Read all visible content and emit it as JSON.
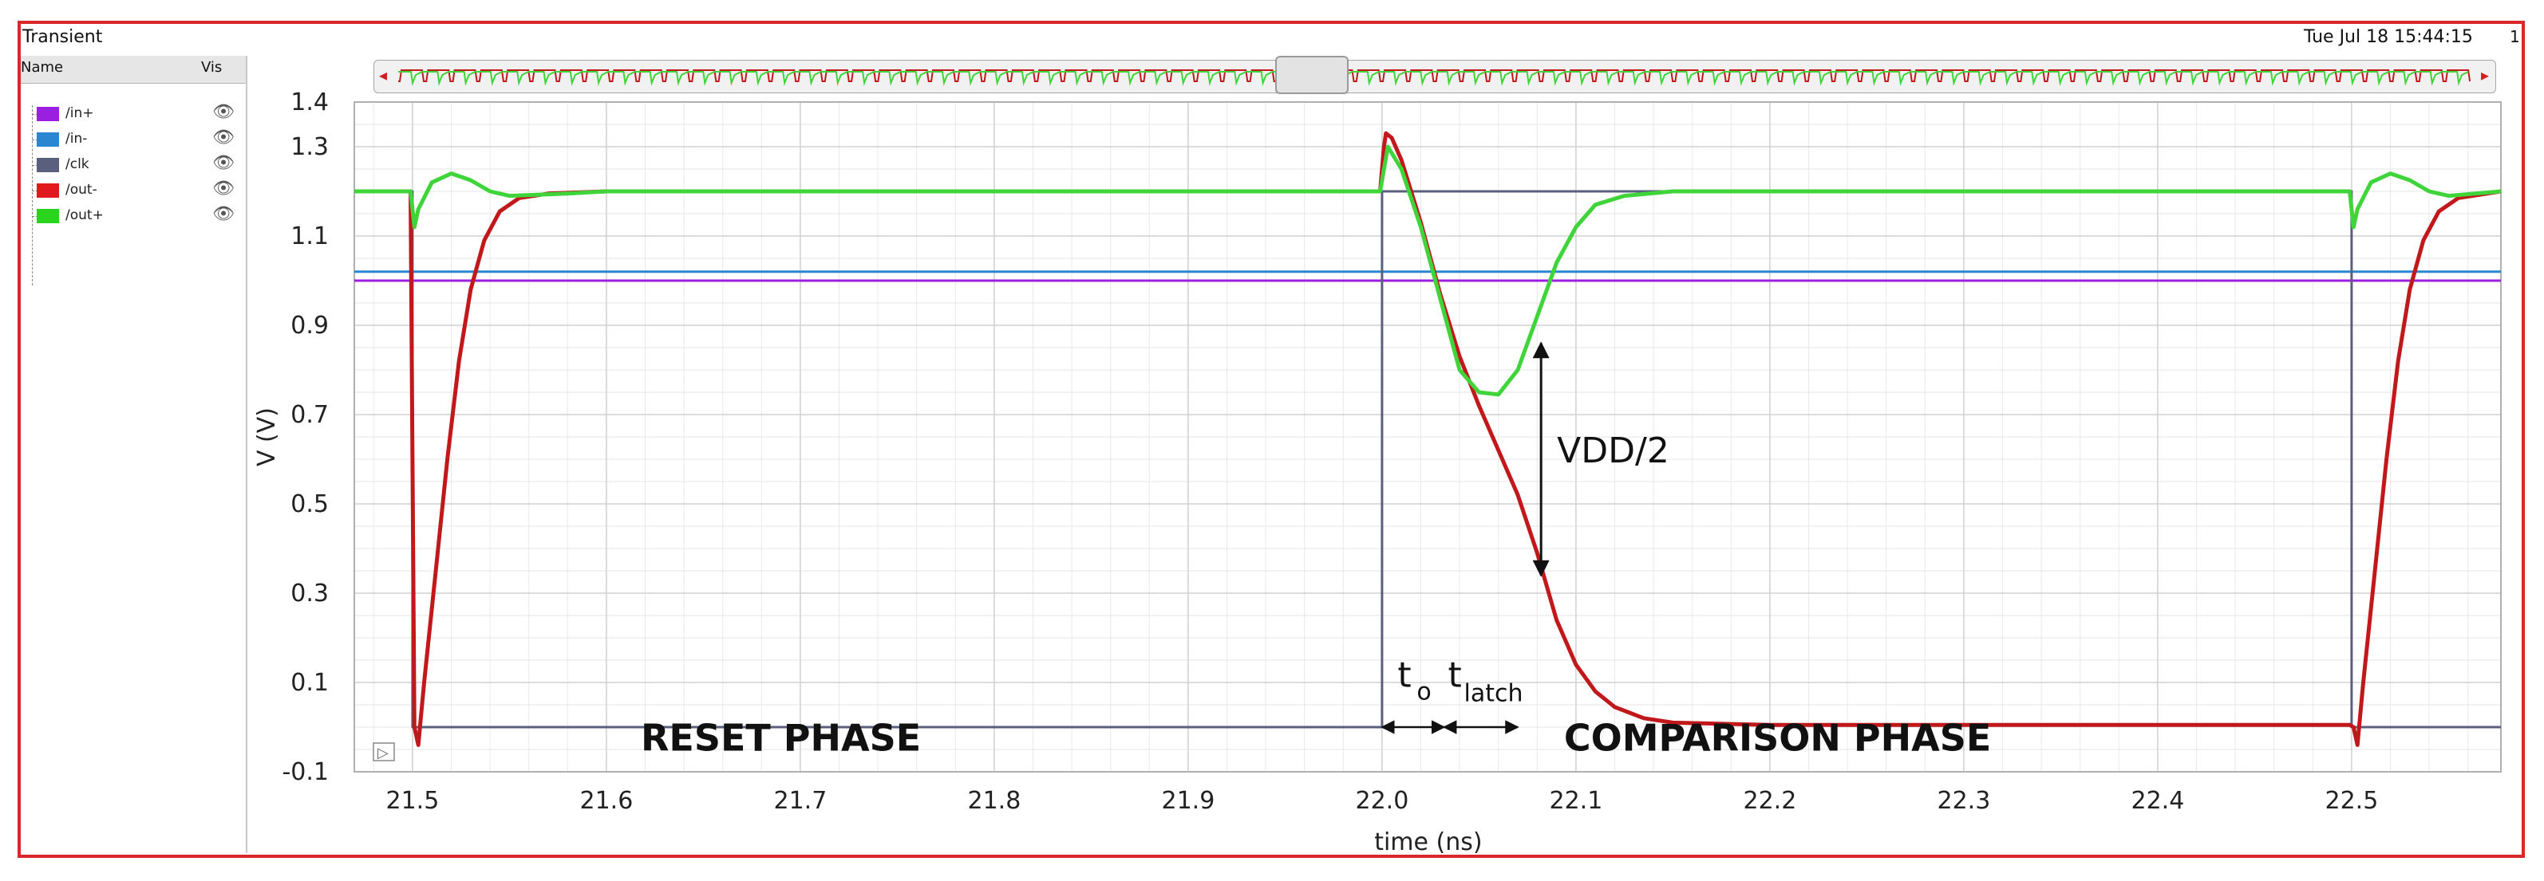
{
  "window": {
    "title": "Transient",
    "date": "Tue Jul 18 15:44:15",
    "number": "1"
  },
  "legend": {
    "header_name": "Name",
    "header_vis": "Vis",
    "items": [
      {
        "label": "/in+",
        "color": "#9b1fe0"
      },
      {
        "label": "/in-",
        "color": "#2a86d0"
      },
      {
        "label": "/clk",
        "color": "#5a5f7d"
      },
      {
        "label": "/out-",
        "color": "#e0191c"
      },
      {
        "label": "/out+",
        "color": "#2ad41c"
      }
    ]
  },
  "navigator": {
    "left_arrow": "◂",
    "right_arrow": "▸",
    "handle": "▌▌"
  },
  "play_icon": "▷",
  "chart_data": {
    "type": "line",
    "xlabel": "time (ns)",
    "ylabel": "V (V)",
    "xlim": [
      21.47,
      22.577
    ],
    "ylim": [
      -0.1,
      1.4
    ],
    "xticks": [
      "21.5",
      "21.6",
      "21.7",
      "21.8",
      "21.9",
      "22.0",
      "22.1",
      "22.2",
      "22.3",
      "22.4",
      "22.5"
    ],
    "xtick_values": [
      21.5,
      21.6,
      21.7,
      21.8,
      21.9,
      22.0,
      22.1,
      22.2,
      22.3,
      22.4,
      22.5
    ],
    "yticks": [
      "1.4",
      "1.3",
      "1.1",
      "0.9",
      "0.7",
      "0.5",
      "0.3",
      "0.1",
      "-0.1"
    ],
    "ytick_values": [
      1.4,
      1.3,
      1.1,
      0.9,
      0.7,
      0.5,
      0.3,
      0.1,
      -0.1
    ],
    "grid": true,
    "series": [
      {
        "name": "/in+",
        "color": "#9b1fe0",
        "points": [
          [
            21.47,
            1.0
          ],
          [
            22.577,
            1.0
          ]
        ]
      },
      {
        "name": "/in-",
        "color": "#2a86d0",
        "points": [
          [
            21.47,
            1.02
          ],
          [
            22.577,
            1.02
          ]
        ]
      },
      {
        "name": "/clk",
        "color": "#5a5f7d",
        "points": [
          [
            21.47,
            1.2
          ],
          [
            21.5,
            1.2
          ],
          [
            21.5,
            0.0
          ],
          [
            22.0,
            0.0
          ],
          [
            22.0,
            1.2
          ],
          [
            22.5,
            1.2
          ],
          [
            22.5,
            0.0
          ],
          [
            22.577,
            0.0
          ]
        ]
      },
      {
        "name": "/out-",
        "color": "#c0181b",
        "points": [
          [
            21.47,
            1.2
          ],
          [
            21.499,
            1.2
          ],
          [
            21.501,
            0.0
          ],
          [
            21.503,
            -0.04
          ],
          [
            21.506,
            0.1
          ],
          [
            21.512,
            0.35
          ],
          [
            21.518,
            0.6
          ],
          [
            21.524,
            0.82
          ],
          [
            21.53,
            0.98
          ],
          [
            21.537,
            1.09
          ],
          [
            21.545,
            1.155
          ],
          [
            21.555,
            1.185
          ],
          [
            21.57,
            1.195
          ],
          [
            21.6,
            1.2
          ],
          [
            21.999,
            1.2
          ],
          [
            22.001,
            1.3
          ],
          [
            22.002,
            1.33
          ],
          [
            22.005,
            1.32
          ],
          [
            22.01,
            1.27
          ],
          [
            22.02,
            1.13
          ],
          [
            22.03,
            0.97
          ],
          [
            22.04,
            0.83
          ],
          [
            22.05,
            0.72
          ],
          [
            22.06,
            0.62
          ],
          [
            22.07,
            0.52
          ],
          [
            22.08,
            0.39
          ],
          [
            22.09,
            0.24
          ],
          [
            22.1,
            0.14
          ],
          [
            22.11,
            0.08
          ],
          [
            22.12,
            0.045
          ],
          [
            22.135,
            0.02
          ],
          [
            22.15,
            0.01
          ],
          [
            22.2,
            0.005
          ],
          [
            22.499,
            0.005
          ],
          [
            22.501,
            0.0
          ],
          [
            22.503,
            -0.04
          ],
          [
            22.506,
            0.1
          ],
          [
            22.512,
            0.35
          ],
          [
            22.518,
            0.6
          ],
          [
            22.524,
            0.82
          ],
          [
            22.53,
            0.98
          ],
          [
            22.537,
            1.09
          ],
          [
            22.545,
            1.155
          ],
          [
            22.555,
            1.185
          ],
          [
            22.577,
            1.2
          ]
        ]
      },
      {
        "name": "/out+",
        "color": "#3fd43a",
        "points": [
          [
            21.47,
            1.2
          ],
          [
            21.499,
            1.2
          ],
          [
            21.501,
            1.12
          ],
          [
            21.503,
            1.16
          ],
          [
            21.51,
            1.22
          ],
          [
            21.52,
            1.24
          ],
          [
            21.53,
            1.225
          ],
          [
            21.54,
            1.2
          ],
          [
            21.55,
            1.19
          ],
          [
            21.58,
            1.195
          ],
          [
            21.6,
            1.2
          ],
          [
            21.999,
            1.2
          ],
          [
            22.003,
            1.3
          ],
          [
            22.01,
            1.25
          ],
          [
            22.02,
            1.12
          ],
          [
            22.03,
            0.96
          ],
          [
            22.04,
            0.8
          ],
          [
            22.05,
            0.75
          ],
          [
            22.06,
            0.745
          ],
          [
            22.07,
            0.8
          ],
          [
            22.08,
            0.92
          ],
          [
            22.09,
            1.04
          ],
          [
            22.1,
            1.12
          ],
          [
            22.11,
            1.17
          ],
          [
            22.125,
            1.19
          ],
          [
            22.15,
            1.2
          ],
          [
            22.499,
            1.2
          ],
          [
            22.501,
            1.12
          ],
          [
            22.503,
            1.16
          ],
          [
            22.51,
            1.22
          ],
          [
            22.52,
            1.24
          ],
          [
            22.53,
            1.225
          ],
          [
            22.54,
            1.2
          ],
          [
            22.55,
            1.19
          ],
          [
            22.577,
            1.2
          ]
        ]
      }
    ],
    "annotations": {
      "vdd_label": "VDD/2",
      "vdd_arrow": {
        "x": 22.082,
        "y_top": 0.86,
        "y_bottom": 0.34
      },
      "t0_main": "t",
      "t0_sub": "o",
      "t0_arrow": [
        22.0,
        22.032
      ],
      "tlatch_main": "t",
      "tlatch_sub": "latch",
      "tlatch_arrow": [
        22.032,
        22.07
      ],
      "label_y": 0.0,
      "reset_label": "RESET PHASE",
      "comparison_label": "COMPARISON PHASE"
    }
  }
}
